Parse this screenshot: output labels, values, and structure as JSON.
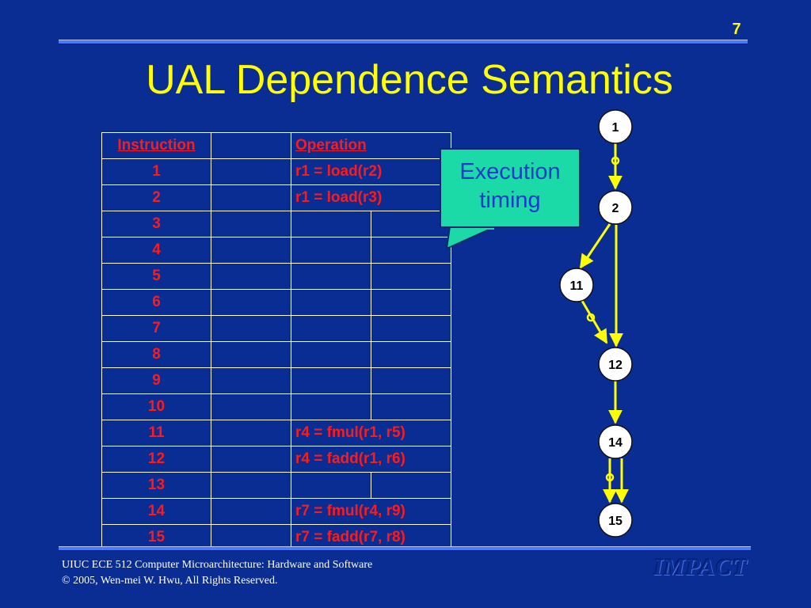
{
  "slide": {
    "page_number": "7",
    "title": "UAL Dependence Semantics"
  },
  "table": {
    "header": {
      "instruction": "Instruction",
      "operation": "Operation"
    },
    "rows": [
      {
        "num": "1",
        "op": "r1 = load(r2)"
      },
      {
        "num": "2",
        "op": "r1 = load(r3)"
      },
      {
        "num": "3",
        "op": ""
      },
      {
        "num": "4",
        "op": ""
      },
      {
        "num": "5",
        "op": ""
      },
      {
        "num": "6",
        "op": ""
      },
      {
        "num": "7",
        "op": ""
      },
      {
        "num": "8",
        "op": ""
      },
      {
        "num": "9",
        "op": ""
      },
      {
        "num": "10",
        "op": ""
      },
      {
        "num": "11",
        "op": "r4 = fmul(r1, r5)"
      },
      {
        "num": "12",
        "op": "r4 = fadd(r1, r6)"
      },
      {
        "num": "13",
        "op": ""
      },
      {
        "num": "14",
        "op": "r7 = fmul(r4, r9)"
      },
      {
        "num": "15",
        "op": "r7 = fadd(r7, r8)"
      }
    ]
  },
  "callout": {
    "line1": "Execution",
    "line2": "timing",
    "color": "#1cd9a8"
  },
  "graph": {
    "nodes": [
      "1",
      "2",
      "11",
      "12",
      "14",
      "15"
    ],
    "edges": [
      {
        "from": "1",
        "to": "2",
        "marker": "circle"
      },
      {
        "from": "2",
        "to": "11",
        "marker": "none"
      },
      {
        "from": "2",
        "to": "12",
        "marker": "none"
      },
      {
        "from": "11",
        "to": "12",
        "marker": "circle"
      },
      {
        "from": "12",
        "to": "14",
        "marker": "none"
      },
      {
        "from": "14",
        "to": "15",
        "marker": "circle"
      },
      {
        "from": "14",
        "to": "15",
        "marker": "none"
      }
    ],
    "edge_color": "#ffff00"
  },
  "footer": {
    "line1": "UIUC ECE 512 Computer Microarchitecture: Hardware and Software",
    "line2": "© 2005, Wen-mei W. Hwu, All Rights Reserved.",
    "logo": "IMPACT"
  },
  "colors": {
    "background": "#0a2d94",
    "title": "#ffff00",
    "table_text": "#ff1a1a"
  }
}
